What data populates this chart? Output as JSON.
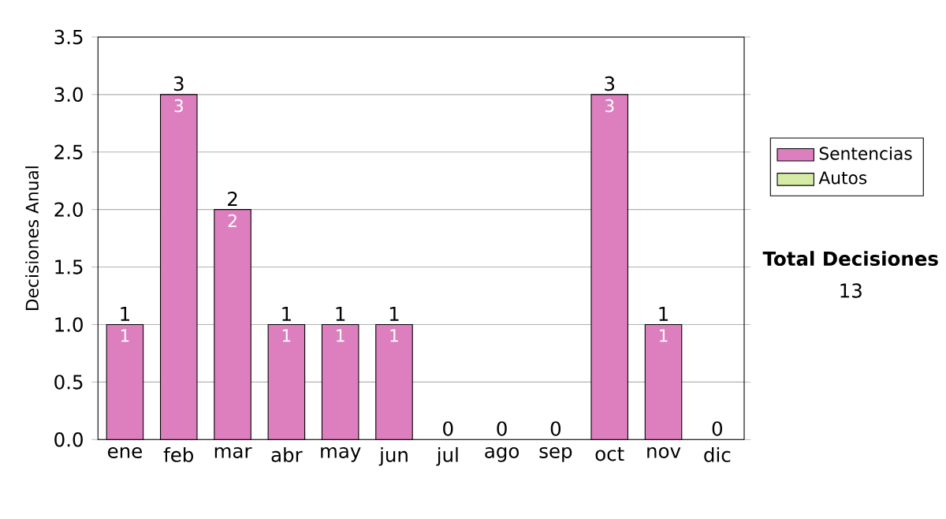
{
  "chart_data": {
    "type": "bar",
    "stacked": true,
    "ylabel": "Decisiones Anual",
    "categories": [
      "ene",
      "feb",
      "mar",
      "abr",
      "may",
      "jun",
      "jul",
      "ago",
      "sep",
      "oct",
      "nov",
      "dic"
    ],
    "series": [
      {
        "name": "Sentencias",
        "color": "#dd7fbf",
        "values": [
          1,
          3,
          2,
          1,
          1,
          1,
          0,
          0,
          0,
          3,
          1,
          0
        ],
        "value_labels": [
          "1",
          "3",
          "2",
          "1",
          "1",
          "1",
          null,
          null,
          null,
          "3",
          "1",
          null
        ]
      },
      {
        "name": "Autos",
        "color": "#d6eca6",
        "values": [
          0,
          0,
          0,
          0,
          0,
          0,
          0,
          0,
          0,
          0,
          0,
          0
        ]
      }
    ],
    "totals": [
      "1",
      "3",
      "2",
      "1",
      "1",
      "1",
      "0",
      "0",
      "0",
      "3",
      "1",
      "0"
    ],
    "ylim": [
      0,
      3.5
    ],
    "yticks": [
      {
        "value": 0,
        "label": "0.0"
      },
      {
        "value": 0.5,
        "label": "0.5"
      },
      {
        "value": 1,
        "label": "1.0"
      },
      {
        "value": 1.5,
        "label": "1.5"
      },
      {
        "value": 2,
        "label": "2.0"
      },
      {
        "value": 2.5,
        "label": "2.5"
      },
      {
        "value": 3,
        "label": "3.0"
      },
      {
        "value": 3.5,
        "label": "3.5"
      }
    ],
    "grid": "y",
    "legend": "right",
    "annotations": [
      "Total Decisiones",
      "13"
    ]
  }
}
